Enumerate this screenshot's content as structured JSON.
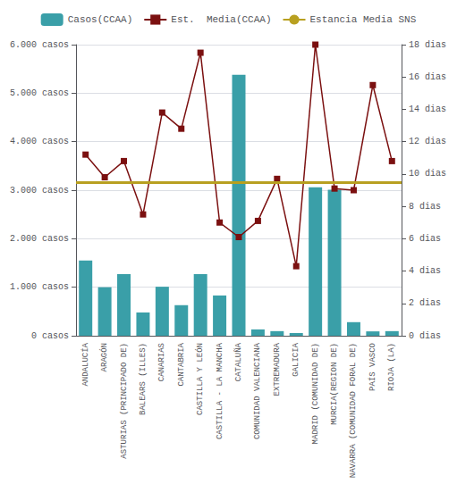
{
  "chart_data": {
    "type": "bar",
    "categories": [
      "ANDALUCÍA",
      "ARAGÓN",
      "ASTURIAS (PRINCIPADO DE)",
      "BALEARS (ILLES)",
      "CANARIAS",
      "CANTABRIA",
      "CASTILLA Y LEÓN",
      "CASTILLA - LA MANCHA",
      "CATALUÑA",
      "COMUNIDAD VALENCIANA",
      "EXTREMADURA",
      "GALICIA",
      "MADRID (COMUNIDAD DE)",
      "MURCIA(REGION DE)",
      "NAVARRA (COMUNIDAD FORAL DE)",
      "PAÍS VASCO",
      "RIOJA (LA)"
    ],
    "series": [
      {
        "name": "Casos(CCAA)",
        "type": "bar",
        "color": "#3A9FA8",
        "values": [
          1550,
          1000,
          1270,
          480,
          1010,
          630,
          1270,
          830,
          5380,
          130,
          95,
          55,
          3060,
          3010,
          280,
          90,
          95
        ]
      },
      {
        "name": "Est.  Media(CCAA)",
        "type": "line",
        "axis": "y2",
        "color": "#7B1010",
        "marker": "square",
        "values": [
          11.2,
          9.8,
          10.8,
          7.5,
          13.8,
          12.8,
          17.5,
          7.0,
          6.1,
          7.1,
          9.7,
          4.3,
          18.0,
          9.1,
          9.0,
          15.5,
          10.8
        ]
      },
      {
        "name": "Estancia Media SNS",
        "type": "hline",
        "axis": "y2",
        "color": "#B8A020",
        "value": 9.5
      }
    ],
    "ylim": [
      0,
      6000
    ],
    "yticks": [
      {
        "value": 0,
        "label": "0 casos"
      },
      {
        "value": 1000,
        "label": "1.000 casos"
      },
      {
        "value": 2000,
        "label": "2.000 casos"
      },
      {
        "value": 3000,
        "label": "3.000 casos"
      },
      {
        "value": 4000,
        "label": "4.000 casos"
      },
      {
        "value": 5000,
        "label": "5.000 casos"
      },
      {
        "value": 6000,
        "label": "6.000 casos"
      }
    ],
    "y2lim": [
      0,
      18
    ],
    "y2ticks": [
      {
        "value": 0,
        "label": "0 dias"
      },
      {
        "value": 2,
        "label": "2 dias"
      },
      {
        "value": 4,
        "label": "4 dias"
      },
      {
        "value": 6,
        "label": "6 dias"
      },
      {
        "value": 8,
        "label": "8 dias"
      },
      {
        "value": 10,
        "label": "10 dias"
      },
      {
        "value": 12,
        "label": "12 dias"
      },
      {
        "value": 14,
        "label": "14 dias"
      },
      {
        "value": 16,
        "label": "16 dias"
      },
      {
        "value": 18,
        "label": "18 dias"
      }
    ],
    "grid": true,
    "legend": "top"
  }
}
